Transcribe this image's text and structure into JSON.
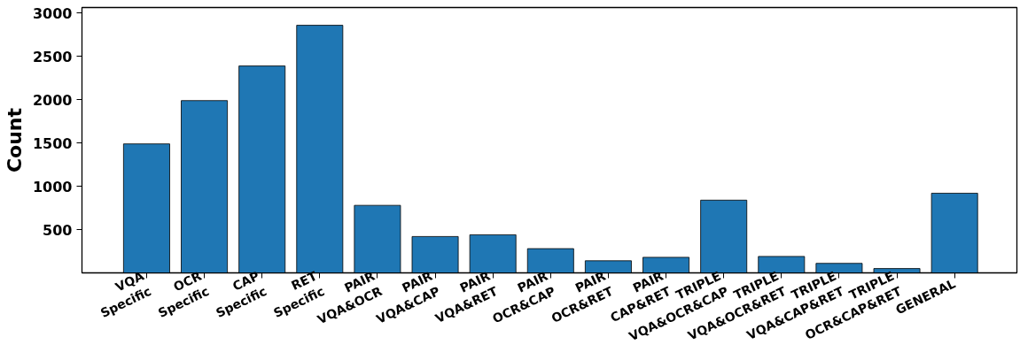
{
  "chart_data": {
    "type": "bar",
    "ylabel": "Count",
    "categories": [
      "VQA\nSpecific",
      "OCR\nSpecific",
      "CAP\nSpecific",
      "RET\nSpecific",
      "PAIR\nVQA&OCR",
      "PAIR\nVQA&CAP",
      "PAIR\nVQA&RET",
      "PAIR\nOCR&CAP",
      "PAIR\nOCR&RET",
      "PAIR\nCAP&RET",
      "TRIPLE\nVQA&OCR&CAP",
      "TRIPLE\nVQA&OCR&RET",
      "TRIPLE\nVQA&CAP&RET",
      "TRIPLE\nOCR&CAP&RET",
      "GENERAL"
    ],
    "values": [
      1490,
      1990,
      2390,
      2860,
      780,
      420,
      440,
      280,
      140,
      180,
      840,
      190,
      110,
      50,
      920
    ],
    "color": "#1f77b4",
    "ylim": [
      0,
      3065
    ],
    "yticks": [
      500,
      1000,
      1500,
      2000,
      2500,
      3000
    ],
    "grid": false
  }
}
